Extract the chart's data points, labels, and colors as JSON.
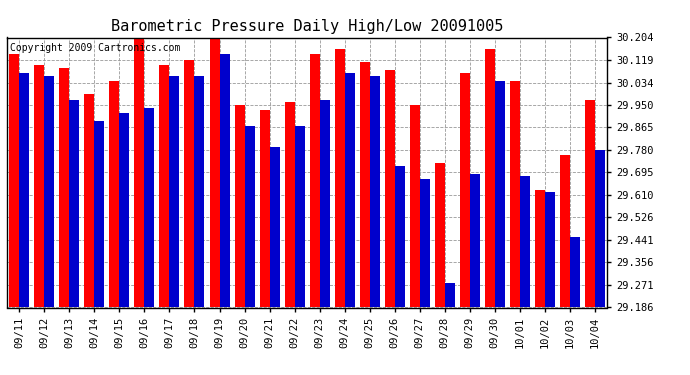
{
  "title": "Barometric Pressure Daily High/Low 20091005",
  "copyright": "Copyright 2009 Cartronics.com",
  "dates": [
    "09/11",
    "09/12",
    "09/13",
    "09/14",
    "09/15",
    "09/16",
    "09/17",
    "09/18",
    "09/19",
    "09/20",
    "09/21",
    "09/22",
    "09/23",
    "09/24",
    "09/25",
    "09/26",
    "09/27",
    "09/28",
    "09/29",
    "09/30",
    "10/01",
    "10/02",
    "10/03",
    "10/04"
  ],
  "highs": [
    30.14,
    30.1,
    30.09,
    29.99,
    30.04,
    30.2,
    30.1,
    30.12,
    30.2,
    29.95,
    29.93,
    29.96,
    30.14,
    30.16,
    30.11,
    30.08,
    29.95,
    29.73,
    30.07,
    30.16,
    30.04,
    29.63,
    29.76,
    29.97
  ],
  "lows": [
    30.07,
    30.06,
    29.97,
    29.89,
    29.92,
    29.94,
    30.06,
    30.06,
    30.14,
    29.87,
    29.79,
    29.87,
    29.97,
    30.07,
    30.06,
    29.72,
    29.67,
    29.28,
    29.69,
    30.04,
    29.68,
    29.62,
    29.45,
    29.78
  ],
  "bar_width": 0.4,
  "ymin": 29.186,
  "ymax": 30.204,
  "yticks": [
    29.186,
    29.271,
    29.356,
    29.441,
    29.526,
    29.61,
    29.695,
    29.78,
    29.865,
    29.95,
    30.034,
    30.119,
    30.204
  ],
  "high_color": "#FF0000",
  "low_color": "#0000CC",
  "bg_color": "#FFFFFF",
  "grid_color": "#999999",
  "title_fontsize": 11,
  "copyright_fontsize": 7,
  "tick_fontsize": 7.5
}
